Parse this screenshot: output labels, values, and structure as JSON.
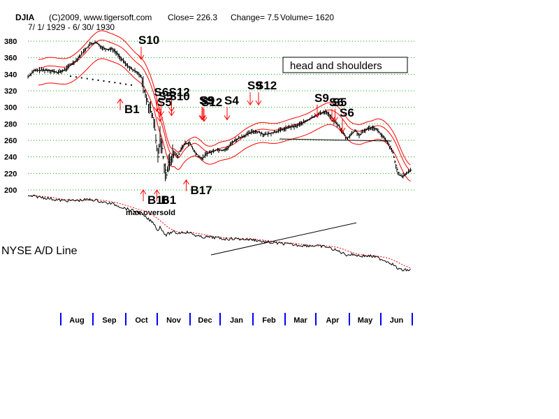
{
  "header": {
    "symbol": "DJIA",
    "copyright": "(C)2009, www.tigersoft.com",
    "close": "Close=  226.3",
    "change": "Change= 7.5",
    "volume": "Volume= 1620",
    "date_range": "7/ 1/ 1929 - 6/ 30/ 1930"
  },
  "annotations": {
    "head_and_shoulders": "head and shoulders",
    "ad_line_label": "NYSE A/D Line",
    "max_oversold": "max.oversold"
  },
  "colors": {
    "price_bars": "#000000",
    "bands": "#ff0000",
    "signal_arrows": "#ff0000",
    "gridlines": "#00aa00",
    "month_ticks": "#0000ff",
    "ad_line": "#000000",
    "ad_ma": "#ff0000"
  },
  "chart_data": {
    "type": "line",
    "title": "DJIA",
    "ylim": [
      200,
      380
    ],
    "yticks": [
      380,
      360,
      340,
      320,
      300,
      280,
      260,
      240,
      220,
      200
    ],
    "grid": true,
    "months": [
      "Aug",
      "Sep",
      "Oct",
      "Nov",
      "Dec",
      "Jan",
      "Feb",
      "Mar",
      "Apr",
      "May",
      "Jun"
    ],
    "price_series": {
      "name": "DJIA",
      "points": [
        [
          0,
          337
        ],
        [
          5,
          344
        ],
        [
          12,
          345
        ],
        [
          20,
          345
        ],
        [
          28,
          342
        ],
        [
          35,
          345
        ],
        [
          40,
          351
        ],
        [
          45,
          356
        ],
        [
          50,
          363
        ],
        [
          55,
          371
        ],
        [
          60,
          377
        ],
        [
          65,
          378
        ],
        [
          70,
          373
        ],
        [
          75,
          370
        ],
        [
          80,
          371
        ],
        [
          85,
          365
        ],
        [
          90,
          357
        ],
        [
          95,
          350
        ],
        [
          100,
          345
        ],
        [
          105,
          342
        ],
        [
          108,
          336
        ],
        [
          110,
          325
        ],
        [
          113,
          310
        ],
        [
          116,
          300
        ],
        [
          118,
          290
        ],
        [
          120,
          285
        ],
        [
          122,
          260
        ],
        [
          124,
          240
        ],
        [
          126,
          265
        ],
        [
          128,
          250
        ],
        [
          130,
          230
        ],
        [
          132,
          218
        ],
        [
          134,
          230
        ],
        [
          137,
          240
        ],
        [
          140,
          245
        ],
        [
          143,
          240
        ],
        [
          146,
          250
        ],
        [
          150,
          256
        ],
        [
          154,
          257
        ],
        [
          157,
          250
        ],
        [
          160,
          244
        ],
        [
          163,
          240
        ],
        [
          166,
          238
        ],
        [
          170,
          244
        ],
        [
          175,
          246
        ],
        [
          180,
          249
        ],
        [
          185,
          248
        ],
        [
          190,
          250
        ],
        [
          195,
          258
        ],
        [
          200,
          262
        ],
        [
          205,
          265
        ],
        [
          210,
          268
        ],
        [
          215,
          271
        ],
        [
          220,
          270
        ],
        [
          225,
          267
        ],
        [
          230,
          268
        ],
        [
          235,
          270
        ],
        [
          240,
          272
        ],
        [
          245,
          274
        ],
        [
          250,
          276
        ],
        [
          255,
          277
        ],
        [
          260,
          280
        ],
        [
          265,
          283
        ],
        [
          270,
          287
        ],
        [
          275,
          291
        ],
        [
          280,
          293
        ],
        [
          284,
          295
        ],
        [
          288,
          290
        ],
        [
          292,
          283
        ],
        [
          296,
          278
        ],
        [
          300,
          270
        ],
        [
          304,
          262
        ],
        [
          308,
          267
        ],
        [
          312,
          272
        ],
        [
          316,
          266
        ],
        [
          320,
          271
        ],
        [
          324,
          274
        ],
        [
          328,
          276
        ],
        [
          332,
          274
        ],
        [
          336,
          268
        ],
        [
          340,
          262
        ],
        [
          344,
          255
        ],
        [
          348,
          245
        ],
        [
          350,
          234
        ],
        [
          352,
          225
        ],
        [
          354,
          218
        ],
        [
          357,
          216
        ],
        [
          361,
          220
        ],
        [
          365,
          224
        ]
      ]
    },
    "signals": [
      {
        "label": "S10",
        "dir": "sell",
        "xi": 108,
        "y": 358
      },
      {
        "label": "B1",
        "dir": "buy",
        "xi": 88,
        "y": 310
      },
      {
        "label": "S6",
        "dir": "sell",
        "xi": 123,
        "y": 295
      },
      {
        "label": "S5",
        "dir": "sell",
        "xi": 126,
        "y": 283
      },
      {
        "label": "S5",
        "dir": "sell",
        "xi": 127,
        "y": 290
      },
      {
        "label": "S10",
        "dir": "sell",
        "xi": 137,
        "y": 290
      },
      {
        "label": "S12",
        "dir": "sell",
        "xi": 137,
        "y": 295
      },
      {
        "label": "S9",
        "dir": "sell",
        "xi": 166,
        "y": 285
      },
      {
        "label": "S9",
        "dir": "sell",
        "xi": 167,
        "y": 285
      },
      {
        "label": "S12",
        "dir": "sell",
        "xi": 168,
        "y": 283
      },
      {
        "label": "S4",
        "dir": "sell",
        "xi": 190,
        "y": 285
      },
      {
        "label": "S9",
        "dir": "sell",
        "xi": 212,
        "y": 303
      },
      {
        "label": "S12",
        "dir": "sell",
        "xi": 220,
        "y": 303
      },
      {
        "label": "S9",
        "dir": "sell",
        "xi": 276,
        "y": 288
      },
      {
        "label": "S6",
        "dir": "sell",
        "xi": 290,
        "y": 283
      },
      {
        "label": "S5",
        "dir": "sell",
        "xi": 293,
        "y": 283
      },
      {
        "label": "S6",
        "dir": "sell",
        "xi": 300,
        "y": 270
      },
      {
        "label": "B16",
        "dir": "buy",
        "xi": 110,
        "y": 200
      },
      {
        "label": "B1",
        "dir": "buy",
        "xi": 123,
        "y": 200
      },
      {
        "label": "B17",
        "dir": "buy",
        "xi": 151,
        "y": 212
      }
    ]
  }
}
